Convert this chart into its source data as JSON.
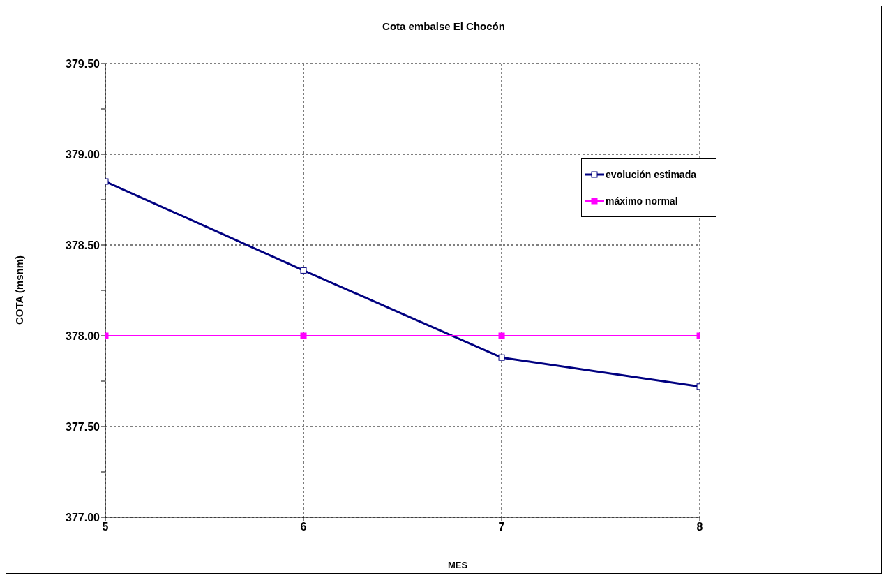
{
  "chart_data": {
    "type": "line",
    "title": "Cota embalse El Chocón",
    "xlabel": "MES",
    "ylabel": "COTA (msnm)",
    "x": [
      5,
      6,
      7,
      8
    ],
    "series": [
      {
        "name": "evolución estimada",
        "color": "#000080",
        "values": [
          378.85,
          378.36,
          377.88,
          377.72
        ]
      },
      {
        "name": "máximo normal",
        "color": "#ff00ff",
        "values": [
          378.0,
          378.0,
          378.0,
          378.0
        ]
      }
    ],
    "xlim": [
      5,
      8
    ],
    "xticks": [
      5,
      6,
      7,
      8
    ],
    "ylim": [
      377,
      379.5
    ],
    "yticks": [
      {
        "value": 377,
        "label": "377.00"
      },
      {
        "value": 377.25,
        "label": null
      },
      {
        "value": 377.5,
        "label": "377.50"
      },
      {
        "value": 377.75,
        "label": null
      },
      {
        "value": 378,
        "label": "378.00"
      },
      {
        "value": 378.25,
        "label": null
      },
      {
        "value": 378.5,
        "label": "378.50"
      },
      {
        "value": 378.75,
        "label": null
      },
      {
        "value": 379,
        "label": "379.00"
      },
      {
        "value": 379.25,
        "label": null
      },
      {
        "value": 379.5,
        "label": "379.50"
      }
    ],
    "grid": true,
    "legend": "top right",
    "marker": "square",
    "line_style": "solid"
  }
}
